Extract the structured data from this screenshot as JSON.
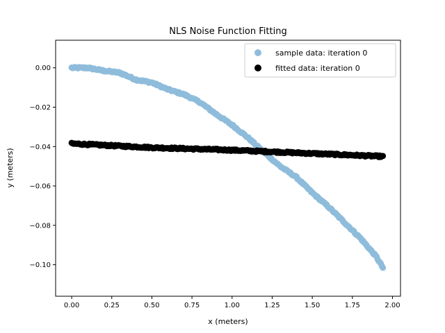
{
  "chart_data": {
    "type": "scatter",
    "title": "NLS Noise Function Fitting",
    "xlabel": "x (meters)",
    "ylabel": "y (meters)",
    "xlim": [
      -0.1,
      2.05
    ],
    "ylim": [
      -0.116,
      0.014
    ],
    "xticks": [
      0.0,
      0.25,
      0.5,
      0.75,
      1.0,
      1.25,
      1.5,
      1.75,
      2.0
    ],
    "xtick_labels": [
      "0.00",
      "0.25",
      "0.50",
      "0.75",
      "1.00",
      "1.25",
      "1.50",
      "1.75",
      "2.00"
    ],
    "yticks": [
      0.0,
      -0.02,
      -0.04,
      -0.06,
      -0.08,
      -0.1
    ],
    "ytick_labels": [
      "0.00",
      "−0.02",
      "−0.04",
      "−0.06",
      "−0.08",
      "−0.10"
    ],
    "grid": false,
    "legend_position": "upper-right",
    "series": [
      {
        "name": "sample data: iteration 0",
        "color": "#8fbcdb",
        "anchors": [
          [
            0.0,
            0.0
          ],
          [
            0.1,
            0.0
          ],
          [
            0.2,
            -0.0015
          ],
          [
            0.3,
            -0.0025
          ],
          [
            0.4,
            -0.006
          ],
          [
            0.5,
            -0.0075
          ],
          [
            0.6,
            -0.011
          ],
          [
            0.7,
            -0.0135
          ],
          [
            0.8,
            -0.0175
          ],
          [
            0.9,
            -0.0235
          ],
          [
            1.0,
            -0.029
          ],
          [
            1.1,
            -0.0355
          ],
          [
            1.2,
            -0.043
          ],
          [
            1.3,
            -0.05
          ],
          [
            1.4,
            -0.0555
          ],
          [
            1.5,
            -0.0635
          ],
          [
            1.6,
            -0.0705
          ],
          [
            1.7,
            -0.0785
          ],
          [
            1.8,
            -0.0865
          ],
          [
            1.9,
            -0.096
          ],
          [
            1.94,
            -0.1015
          ]
        ],
        "sample_count": 300
      },
      {
        "name": "fitted data: iteration 0",
        "color": "#000000",
        "anchors": [
          [
            0.0,
            -0.0385
          ],
          [
            0.5,
            -0.0405
          ],
          [
            1.0,
            -0.0418
          ],
          [
            1.5,
            -0.0435
          ],
          [
            1.94,
            -0.045
          ]
        ],
        "sample_count": 300
      }
    ]
  }
}
